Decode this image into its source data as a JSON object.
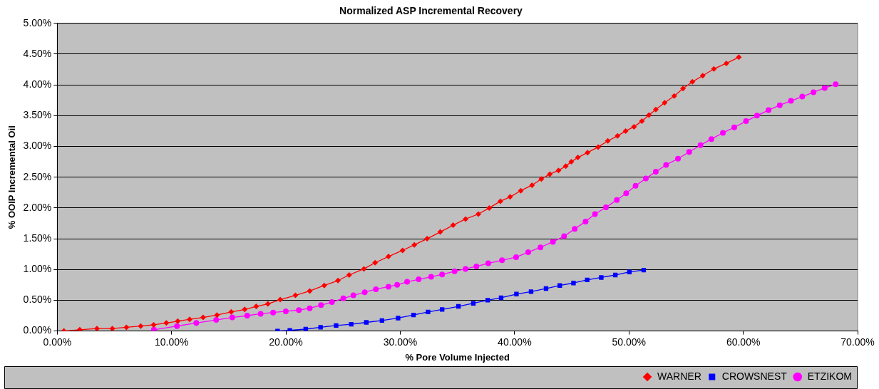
{
  "chart_data": {
    "type": "line",
    "title": "Normalized ASP Incremental Recovery",
    "xlabel": "% Pore Volume Injected",
    "ylabel": "% OOIP Incremental Oil",
    "xlim": [
      0,
      70
    ],
    "xticks": [
      {
        "value": 0,
        "label": "0.00%"
      },
      {
        "value": 10,
        "label": "10.00%"
      },
      {
        "value": 20,
        "label": "20.00%"
      },
      {
        "value": 30,
        "label": "30.00%"
      },
      {
        "value": 40,
        "label": "40.00%"
      },
      {
        "value": 50,
        "label": "50.00%"
      },
      {
        "value": 60,
        "label": "60.00%"
      },
      {
        "value": 70,
        "label": "70.00%"
      }
    ],
    "ylim": [
      0,
      5
    ],
    "yticks": [
      {
        "value": 0,
        "label": "0.00%"
      },
      {
        "value": 0.5,
        "label": "0.50%"
      },
      {
        "value": 1,
        "label": "1.00%"
      },
      {
        "value": 1.5,
        "label": "1.50%"
      },
      {
        "value": 2,
        "label": "2.00%"
      },
      {
        "value": 2.5,
        "label": "2.50%"
      },
      {
        "value": 3,
        "label": "3.00%"
      },
      {
        "value": 3.5,
        "label": "3.50%"
      },
      {
        "value": 4,
        "label": "4.00%"
      },
      {
        "value": 4.5,
        "label": "4.50%"
      },
      {
        "value": 5,
        "label": "5.00%"
      }
    ],
    "grid": "y",
    "legend": "bottom right",
    "series": [
      {
        "name": "WARNER",
        "color": "#ff0000",
        "marker": "diamond",
        "x": [
          0.58,
          1.97,
          3.47,
          4.82,
          6.05,
          7.3,
          8.43,
          9.54,
          10.54,
          11.58,
          12.76,
          13.97,
          15.22,
          16.4,
          17.4,
          18.42,
          19.5,
          20.83,
          22.08,
          23.35,
          24.55,
          25.53,
          26.82,
          27.8,
          28.97,
          30.2,
          31.23,
          32.35,
          33.5,
          34.62,
          35.71,
          36.83,
          37.78,
          38.76,
          39.61,
          40.54,
          41.52,
          42.34,
          43.08,
          43.84,
          44.47,
          44.96,
          45.53,
          46.38,
          47.31,
          48.15,
          49.0,
          49.71,
          50.44,
          51.13,
          51.75,
          52.35,
          53.12,
          53.96,
          54.73,
          55.55,
          56.45,
          57.43,
          58.52,
          59.61
        ],
        "values": [
          0,
          0.02,
          0.04,
          0.04,
          0.06,
          0.08,
          0.1,
          0.13,
          0.16,
          0.19,
          0.22,
          0.26,
          0.31,
          0.35,
          0.4,
          0.44,
          0.51,
          0.58,
          0.65,
          0.74,
          0.82,
          0.91,
          1.01,
          1.11,
          1.21,
          1.31,
          1.4,
          1.5,
          1.61,
          1.72,
          1.82,
          1.9,
          2.0,
          2.11,
          2.18,
          2.28,
          2.37,
          2.47,
          2.55,
          2.61,
          2.68,
          2.75,
          2.82,
          2.9,
          2.99,
          3.09,
          3.17,
          3.25,
          3.32,
          3.41,
          3.51,
          3.6,
          3.71,
          3.82,
          3.94,
          4.05,
          4.15,
          4.26,
          4.35,
          4.45
        ]
      },
      {
        "name": "CROWSNEST",
        "color": "#0000ff",
        "marker": "square",
        "x": [
          19.27,
          20.34,
          21.73,
          23.03,
          24.39,
          25.71,
          27.03,
          28.4,
          29.81,
          31.16,
          32.43,
          33.66,
          35.09,
          36.39,
          37.65,
          38.82,
          40.16,
          41.44,
          42.75,
          43.95,
          45.15,
          46.35,
          47.58,
          48.81,
          50.04,
          51.29
        ],
        "values": [
          0,
          0.01,
          0.03,
          0.06,
          0.09,
          0.11,
          0.14,
          0.17,
          0.21,
          0.26,
          0.31,
          0.35,
          0.4,
          0.45,
          0.5,
          0.54,
          0.6,
          0.64,
          0.69,
          0.74,
          0.78,
          0.83,
          0.87,
          0.91,
          0.96,
          0.99
        ]
      },
      {
        "name": "ETZIKOM",
        "color": "#ff00ff",
        "marker": "circle",
        "x": [
          8.45,
          10.47,
          12.16,
          13.9,
          15.31,
          16.61,
          17.79,
          18.88,
          19.99,
          21.13,
          22.08,
          23.07,
          24.02,
          25.02,
          25.9,
          26.89,
          27.87,
          28.97,
          29.73,
          30.6,
          31.61,
          32.7,
          33.66,
          34.75,
          35.71,
          36.66,
          37.7,
          38.9,
          40.13,
          41.19,
          42.26,
          43.35,
          44.33,
          45.26,
          46.21,
          47.03,
          47.99,
          48.94,
          49.76,
          50.58,
          51.48,
          52.35,
          53.25,
          54.29,
          55.27,
          56.26,
          57.21,
          58.22,
          59.21,
          60.24,
          61.2,
          62.21,
          63.19,
          64.17,
          65.16,
          66.14,
          67.12,
          68.08
        ],
        "values": [
          0.02,
          0.08,
          0.13,
          0.18,
          0.22,
          0.25,
          0.28,
          0.3,
          0.32,
          0.34,
          0.37,
          0.42,
          0.47,
          0.53,
          0.58,
          0.63,
          0.68,
          0.72,
          0.75,
          0.8,
          0.84,
          0.88,
          0.92,
          0.97,
          1.01,
          1.05,
          1.1,
          1.15,
          1.2,
          1.28,
          1.36,
          1.45,
          1.54,
          1.66,
          1.78,
          1.9,
          2.01,
          2.13,
          2.24,
          2.36,
          2.48,
          2.59,
          2.7,
          2.8,
          2.91,
          3.02,
          3.12,
          3.22,
          3.31,
          3.41,
          3.5,
          3.59,
          3.67,
          3.74,
          3.81,
          3.88,
          3.95,
          4.01
        ]
      }
    ]
  }
}
